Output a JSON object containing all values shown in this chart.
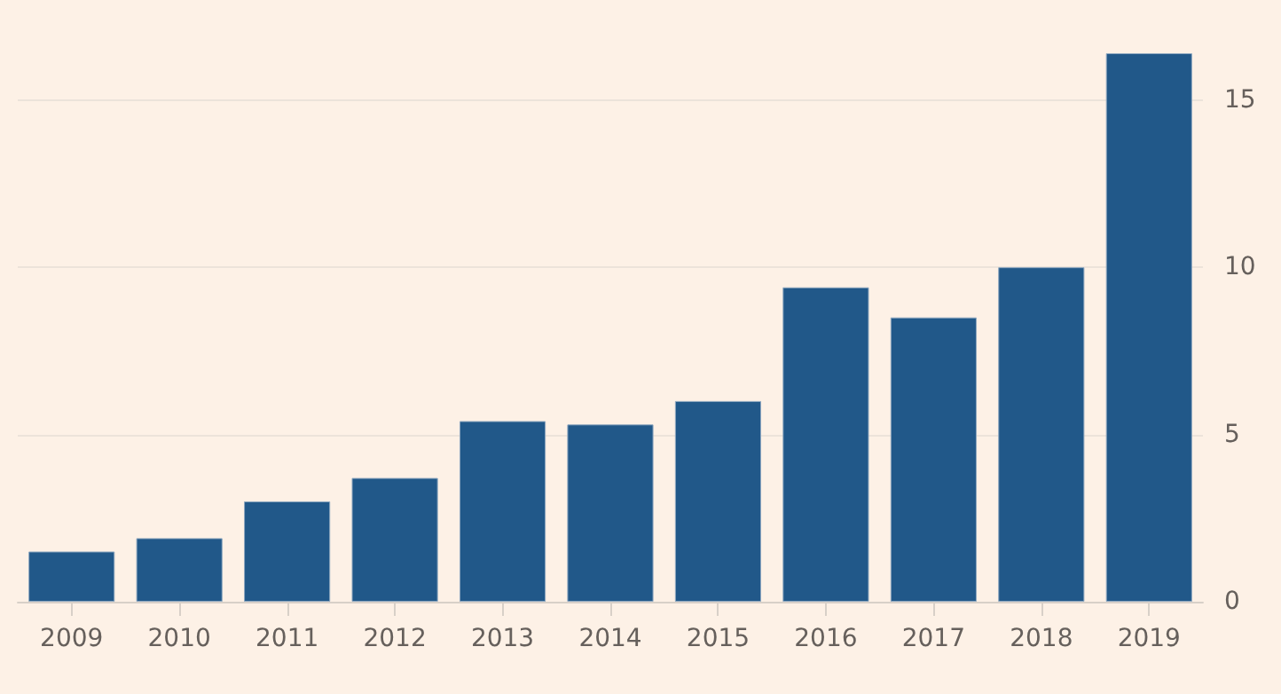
{
  "chart_data": {
    "type": "bar",
    "categories": [
      "2009",
      "2010",
      "2011",
      "2012",
      "2013",
      "2014",
      "2015",
      "2016",
      "2017",
      "2018",
      "2019"
    ],
    "values": [
      1.5,
      1.9,
      3.0,
      3.7,
      5.4,
      5.3,
      6.0,
      9.4,
      8.5,
      10.0,
      16.4
    ],
    "color": "#215889",
    "ylim": [
      0,
      16.4
    ],
    "yticks": [
      0,
      5,
      10,
      15
    ],
    "grid": "y"
  }
}
